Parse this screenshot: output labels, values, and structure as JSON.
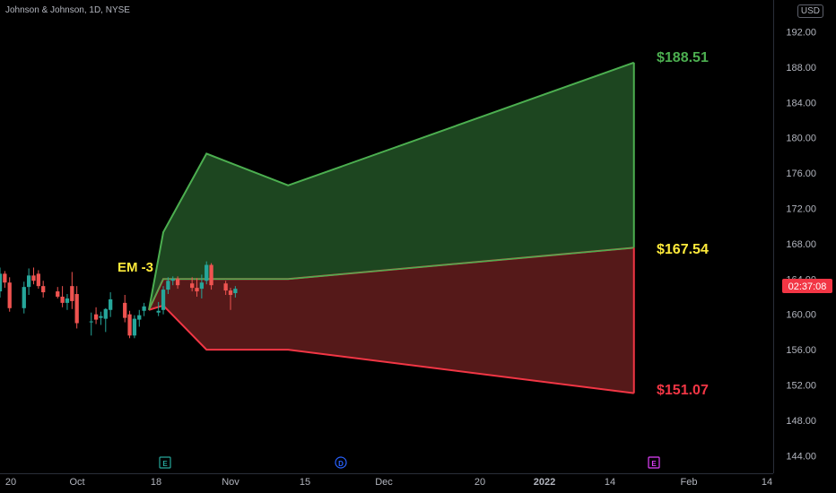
{
  "header": {
    "symbol_line": "Johnson & Johnson, 1D, NYSE",
    "currency": "USD"
  },
  "countdown": "02:37:08",
  "annotations": {
    "em_label": "EM -3",
    "upper_label": "$188.51",
    "mid_label": "$167.54",
    "lower_label": "$151.07"
  },
  "event_markers": [
    "E",
    "D",
    "E"
  ],
  "colors": {
    "background": "#000000",
    "green_fill": "#1f4a22",
    "red_fill": "#5a1a1a",
    "green_line": "#4caf50",
    "red_line": "#f23645",
    "mid_label": "#ffeb3b",
    "up_candle": "#26a69a",
    "down_candle": "#ef5350"
  },
  "chart_data": {
    "type": "area",
    "title": "",
    "y_axis": {
      "ticks": [
        144,
        148,
        152,
        156,
        160,
        164,
        168,
        172,
        176,
        180,
        184,
        188,
        192
      ],
      "tick_labels": [
        "144.00",
        "148.00",
        "152.00",
        "156.00",
        "160.00",
        "164.00",
        "168.00",
        "172.00",
        "176.00",
        "180.00",
        "184.00",
        "188.00",
        "192.00"
      ],
      "ylim": [
        142.0,
        195.6
      ]
    },
    "x_axis": {
      "tick_labels": [
        "20",
        "Oct",
        "18",
        "Nov",
        "15",
        "Dec",
        "20",
        "2022",
        "14",
        "Feb",
        "14"
      ],
      "xlim": [
        "2021-09-15",
        "2022-02-23"
      ]
    },
    "bands": {
      "upper": {
        "x": [
          "2021-10-16",
          "2021-10-19",
          "2021-10-28",
          "2021-11-14",
          "2022-01-25"
        ],
        "values": [
          160.5,
          169.3,
          178.2,
          174.6,
          188.51
        ]
      },
      "mid": {
        "x": [
          "2021-10-16",
          "2021-10-19",
          "2021-10-28",
          "2021-11-14",
          "2022-01-25"
        ],
        "values": [
          160.5,
          164.0,
          164.0,
          164.0,
          167.54
        ]
      },
      "lower": {
        "x": [
          "2021-10-16",
          "2021-10-19",
          "2021-10-28",
          "2021-11-14",
          "2022-01-25"
        ],
        "values": [
          160.5,
          161.0,
          156.0,
          156.0,
          151.07
        ]
      }
    },
    "candles": [
      {
        "x": "2021-09-14",
        "o": 163.0,
        "h": 164.0,
        "l": 161.4,
        "c": 161.8
      },
      {
        "x": "2021-09-15",
        "o": 162.6,
        "h": 165.3,
        "l": 161.9,
        "c": 164.6
      },
      {
        "x": "2021-09-16",
        "o": 164.6,
        "h": 164.9,
        "l": 163.0,
        "c": 163.6
      },
      {
        "x": "2021-09-17",
        "o": 163.6,
        "h": 164.2,
        "l": 160.3,
        "c": 160.7
      },
      {
        "x": "2021-09-20",
        "o": 160.7,
        "h": 163.7,
        "l": 160.1,
        "c": 163.1
      },
      {
        "x": "2021-09-21",
        "o": 163.1,
        "h": 165.2,
        "l": 162.2,
        "c": 164.4
      },
      {
        "x": "2021-09-22",
        "o": 164.4,
        "h": 165.3,
        "l": 163.4,
        "c": 163.8
      },
      {
        "x": "2021-09-23",
        "o": 164.6,
        "h": 165.0,
        "l": 162.9,
        "c": 163.2
      },
      {
        "x": "2021-09-24",
        "o": 163.2,
        "h": 163.8,
        "l": 161.9,
        "c": 162.5
      },
      {
        "x": "2021-09-27",
        "o": 162.6,
        "h": 163.1,
        "l": 161.8,
        "c": 162.0
      },
      {
        "x": "2021-09-28",
        "o": 162.0,
        "h": 163.2,
        "l": 160.8,
        "c": 161.3
      },
      {
        "x": "2021-09-29",
        "o": 161.3,
        "h": 162.3,
        "l": 160.5,
        "c": 161.8
      },
      {
        "x": "2021-09-30",
        "o": 163.2,
        "h": 164.8,
        "l": 160.6,
        "c": 161.5
      },
      {
        "x": "2021-10-01",
        "o": 162.3,
        "h": 163.2,
        "l": 158.4,
        "c": 159.0
      },
      {
        "x": "2021-10-04",
        "o": 159.2,
        "h": 160.2,
        "l": 157.6,
        "c": 159.2
      },
      {
        "x": "2021-10-05",
        "o": 160.0,
        "h": 160.8,
        "l": 158.9,
        "c": 159.4
      },
      {
        "x": "2021-10-06",
        "o": 159.6,
        "h": 160.3,
        "l": 158.8,
        "c": 159.8
      },
      {
        "x": "2021-10-07",
        "o": 159.5,
        "h": 160.7,
        "l": 158.0,
        "c": 160.6
      },
      {
        "x": "2021-10-08",
        "o": 160.5,
        "h": 162.5,
        "l": 159.7,
        "c": 161.7
      },
      {
        "x": "2021-10-11",
        "o": 161.3,
        "h": 162.2,
        "l": 159.1,
        "c": 159.6
      },
      {
        "x": "2021-10-12",
        "o": 160.0,
        "h": 160.4,
        "l": 157.3,
        "c": 157.6
      },
      {
        "x": "2021-10-13",
        "o": 157.6,
        "h": 159.9,
        "l": 157.3,
        "c": 159.5
      },
      {
        "x": "2021-10-14",
        "o": 159.4,
        "h": 160.5,
        "l": 158.6,
        "c": 159.9
      },
      {
        "x": "2021-10-15",
        "o": 160.4,
        "h": 161.3,
        "l": 159.8,
        "c": 160.9
      },
      {
        "x": "2021-10-18",
        "o": 160.2,
        "h": 161.4,
        "l": 159.8,
        "c": 160.4
      },
      {
        "x": "2021-10-19",
        "o": 160.5,
        "h": 163.2,
        "l": 160.0,
        "c": 162.8
      },
      {
        "x": "2021-10-20",
        "o": 162.8,
        "h": 164.2,
        "l": 162.3,
        "c": 163.8
      },
      {
        "x": "2021-10-21",
        "o": 163.8,
        "h": 164.3,
        "l": 163.3,
        "c": 164.0
      },
      {
        "x": "2021-10-22",
        "o": 164.0,
        "h": 164.3,
        "l": 162.9,
        "c": 163.3
      },
      {
        "x": "2021-10-25",
        "o": 163.5,
        "h": 164.2,
        "l": 162.6,
        "c": 163.0
      },
      {
        "x": "2021-10-26",
        "o": 163.0,
        "h": 164.1,
        "l": 162.0,
        "c": 162.6
      },
      {
        "x": "2021-10-27",
        "o": 162.9,
        "h": 164.5,
        "l": 161.8,
        "c": 163.6
      },
      {
        "x": "2021-10-28",
        "o": 163.8,
        "h": 166.0,
        "l": 163.4,
        "c": 165.6
      },
      {
        "x": "2021-10-29",
        "o": 165.6,
        "h": 165.8,
        "l": 162.8,
        "c": 163.3
      },
      {
        "x": "2021-11-01",
        "o": 163.5,
        "h": 163.8,
        "l": 162.2,
        "c": 162.7
      },
      {
        "x": "2021-11-02",
        "o": 162.7,
        "h": 163.0,
        "l": 160.5,
        "c": 162.2
      },
      {
        "x": "2021-11-03",
        "o": 162.4,
        "h": 163.2,
        "l": 161.9,
        "c": 162.9
      }
    ]
  }
}
